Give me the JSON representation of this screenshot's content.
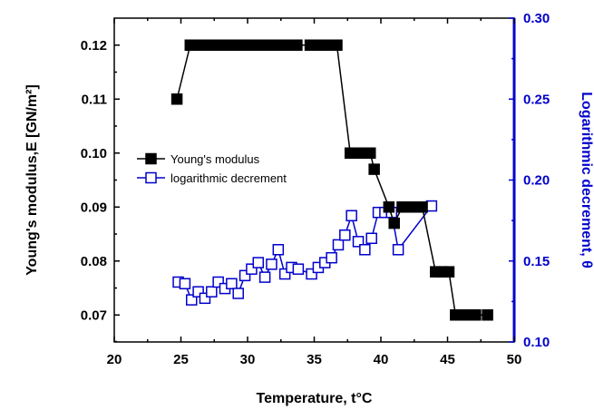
{
  "chart_data": {
    "type": "scatter",
    "xlabel": "Temperature, t°C",
    "ylabel_left": "Young's modulus,E [GN/m²]",
    "ylabel_right": "Logarithmic decrement, θ",
    "xlim": [
      20,
      50
    ],
    "ylim_left": [
      0.065,
      0.125
    ],
    "ylim_right": [
      0.1,
      0.3
    ],
    "x_ticks": [
      "20",
      "25",
      "30",
      "35",
      "40",
      "45",
      "50"
    ],
    "y_left_ticks": [
      "0.07",
      "0.08",
      "0.09",
      "0.10",
      "0.11",
      "0.12"
    ],
    "y_right_ticks": [
      "0.10",
      "0.15",
      "0.20",
      "0.25",
      "0.30"
    ],
    "grid": false,
    "legend_position": "center-left",
    "colors": {
      "left_axis": "#000000",
      "right_axis": "#0000cc"
    },
    "series": [
      {
        "name": "Young's modulus",
        "axis": "left",
        "marker": "filled-square",
        "color": "#000000",
        "points": [
          [
            24.7,
            0.11
          ],
          [
            25.7,
            0.12
          ],
          [
            26.2,
            0.12
          ],
          [
            26.7,
            0.12
          ],
          [
            27.2,
            0.12
          ],
          [
            27.7,
            0.12
          ],
          [
            28.2,
            0.12
          ],
          [
            28.7,
            0.12
          ],
          [
            29.2,
            0.12
          ],
          [
            29.7,
            0.12
          ],
          [
            30.2,
            0.12
          ],
          [
            30.7,
            0.12
          ],
          [
            31.2,
            0.12
          ],
          [
            31.7,
            0.12
          ],
          [
            32.2,
            0.12
          ],
          [
            32.7,
            0.12
          ],
          [
            33.2,
            0.12
          ],
          [
            33.7,
            0.12
          ],
          [
            34.7,
            0.12
          ],
          [
            35.2,
            0.12
          ],
          [
            35.7,
            0.12
          ],
          [
            36.2,
            0.12
          ],
          [
            36.7,
            0.12
          ],
          [
            37.7,
            0.1
          ],
          [
            38.2,
            0.1
          ],
          [
            38.7,
            0.1
          ],
          [
            39.2,
            0.1
          ],
          [
            39.5,
            0.097
          ],
          [
            40.6,
            0.09
          ],
          [
            41.0,
            0.087
          ],
          [
            41.6,
            0.09
          ],
          [
            42.1,
            0.09
          ],
          [
            42.6,
            0.09
          ],
          [
            43.1,
            0.09
          ],
          [
            44.1,
            0.078
          ],
          [
            44.6,
            0.078
          ],
          [
            45.1,
            0.078
          ],
          [
            45.6,
            0.07
          ],
          [
            46.1,
            0.07
          ],
          [
            46.6,
            0.07
          ],
          [
            47.1,
            0.07
          ],
          [
            48.0,
            0.07
          ]
        ]
      },
      {
        "name": "logarithmic decrement",
        "axis": "right",
        "marker": "open-square",
        "color": "#0000cc",
        "points": [
          [
            24.8,
            0.137
          ],
          [
            25.3,
            0.136
          ],
          [
            25.8,
            0.126
          ],
          [
            26.3,
            0.131
          ],
          [
            26.8,
            0.127
          ],
          [
            27.3,
            0.131
          ],
          [
            27.8,
            0.137
          ],
          [
            28.3,
            0.133
          ],
          [
            28.8,
            0.136
          ],
          [
            29.3,
            0.13
          ],
          [
            29.8,
            0.141
          ],
          [
            30.3,
            0.145
          ],
          [
            30.8,
            0.149
          ],
          [
            31.3,
            0.14
          ],
          [
            31.8,
            0.148
          ],
          [
            32.3,
            0.157
          ],
          [
            32.8,
            0.142
          ],
          [
            33.3,
            0.146
          ],
          [
            33.8,
            0.145
          ],
          [
            34.8,
            0.142
          ],
          [
            35.3,
            0.146
          ],
          [
            35.8,
            0.149
          ],
          [
            36.3,
            0.152
          ],
          [
            36.8,
            0.16
          ],
          [
            37.3,
            0.166
          ],
          [
            37.8,
            0.178
          ],
          [
            38.3,
            0.162
          ],
          [
            38.8,
            0.157
          ],
          [
            39.3,
            0.164
          ],
          [
            39.8,
            0.18
          ],
          [
            40.3,
            0.18
          ],
          [
            40.8,
            0.18
          ],
          [
            41.3,
            0.157
          ],
          [
            43.8,
            0.184
          ]
        ]
      }
    ]
  }
}
